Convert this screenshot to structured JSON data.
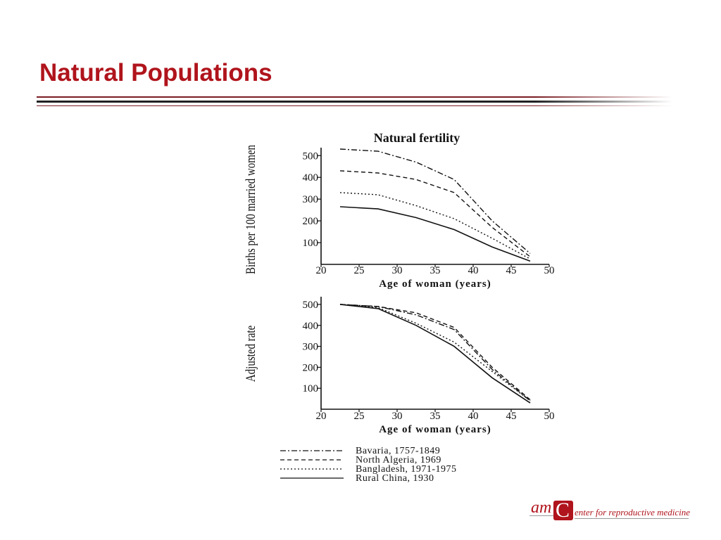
{
  "slide": {
    "title": "Natural Populations"
  },
  "logo": {
    "mark_text": "am",
    "initial": "C",
    "tagline": "enter for reproductive medicine",
    "brand_color": "#b0141c"
  },
  "colors": {
    "title": "#b0141c",
    "rule_dark": "#222222",
    "rule_accent": "#7a1d22",
    "plot_ink": "#111111"
  },
  "figure_title": "Natural fertility",
  "legend_position": "bottom",
  "legend": [
    {
      "label": "Bavaria, 1757-1849",
      "style": "dash-dot"
    },
    {
      "label": "North Algeria, 1969",
      "style": "dashed"
    },
    {
      "label": "Bangladesh, 1971-1975",
      "style": "dotted"
    },
    {
      "label": "Rural China, 1930",
      "style": "solid"
    }
  ],
  "chart_data": [
    {
      "type": "line",
      "title": "Natural fertility",
      "xlabel": "Age of woman (years)",
      "ylabel": "Births per 100 married women",
      "xlim": [
        20,
        50
      ],
      "ylim": [
        0,
        530
      ],
      "xticks": [
        20,
        25,
        30,
        35,
        40,
        45,
        50
      ],
      "yticks": [
        100,
        200,
        300,
        400,
        500
      ],
      "grid": false,
      "x": [
        22.5,
        27.5,
        32.5,
        37.5,
        42.5,
        47.5
      ],
      "series": [
        {
          "name": "Bavaria, 1757-1849",
          "style": "dash-dot",
          "values": [
            530,
            520,
            470,
            390,
            200,
            50
          ]
        },
        {
          "name": "North Algeria, 1969",
          "style": "dashed",
          "values": [
            430,
            420,
            390,
            330,
            170,
            35
          ]
        },
        {
          "name": "Bangladesh, 1971-1975",
          "style": "dotted",
          "values": [
            330,
            320,
            270,
            210,
            120,
            25
          ]
        },
        {
          "name": "Rural China, 1930",
          "style": "solid",
          "values": [
            265,
            255,
            215,
            160,
            80,
            15
          ]
        }
      ]
    },
    {
      "type": "line",
      "title": "",
      "xlabel": "Age of woman (years)",
      "ylabel": "Adjusted rate",
      "xlim": [
        20,
        50
      ],
      "ylim": [
        0,
        530
      ],
      "xticks": [
        20,
        25,
        30,
        35,
        40,
        45,
        50
      ],
      "yticks": [
        100,
        200,
        300,
        400,
        500
      ],
      "grid": false,
      "x": [
        22.5,
        27.5,
        32.5,
        37.5,
        42.5,
        47.5
      ],
      "series": [
        {
          "name": "Bavaria, 1757-1849",
          "style": "dash-dot",
          "values": [
            500,
            490,
            450,
            380,
            190,
            40
          ]
        },
        {
          "name": "North Algeria, 1969",
          "style": "dashed",
          "values": [
            500,
            490,
            460,
            390,
            200,
            45
          ]
        },
        {
          "name": "Bangladesh, 1971-1975",
          "style": "dotted",
          "values": [
            500,
            485,
            410,
            320,
            180,
            40
          ]
        },
        {
          "name": "Rural China, 1930",
          "style": "solid",
          "values": [
            500,
            480,
            400,
            300,
            150,
            30
          ]
        }
      ]
    }
  ]
}
